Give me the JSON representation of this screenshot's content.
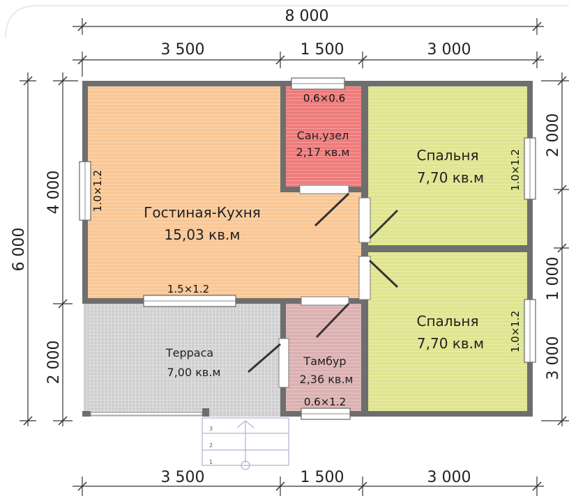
{
  "dimensions": {
    "top_total": "8 000",
    "top_segments": [
      "3 500",
      "1 500",
      "3 000"
    ],
    "bottom_segments": [
      "3 500",
      "1 500",
      "3 000"
    ],
    "left_total": "6 000",
    "left_segments": [
      "4 000",
      "2 000"
    ],
    "right_segments": [
      "2 000",
      "1 000",
      "3 000"
    ]
  },
  "rooms": {
    "living": {
      "name": "Гостиная-Кухня",
      "area": "15,03 кв.м",
      "color": "#f9c795"
    },
    "bath": {
      "name": "Сан.узел",
      "area": "2,17 кв.м",
      "color": "#ef7b7b"
    },
    "bedroom1": {
      "name": "Спальня",
      "area": "7,70 кв.м",
      "color": "#dfe58f"
    },
    "bedroom2": {
      "name": "Спальня",
      "area": "7,70 кв.м",
      "color": "#dfe58f"
    },
    "terrace": {
      "name": "Терраса",
      "area": "7,00 кв.м",
      "color": "#cfcfcf"
    },
    "vestibule": {
      "name": "Тамбур",
      "area": "2,36 кв.м",
      "color": "#dcb1b1"
    }
  },
  "windows": {
    "bath": "0.6×0.6",
    "living_left": "1.0×1.2",
    "living_bottom": "1.5×1.2",
    "bedroom1_right": "1.0×1.2",
    "bedroom2_right": "1.0×1.2",
    "vestibule_bottom": "0.6×1.2"
  },
  "stairs": [
    "3",
    "2",
    "1"
  ],
  "colors": {
    "wall": "#6e6e6e",
    "dimension": "#333333"
  }
}
